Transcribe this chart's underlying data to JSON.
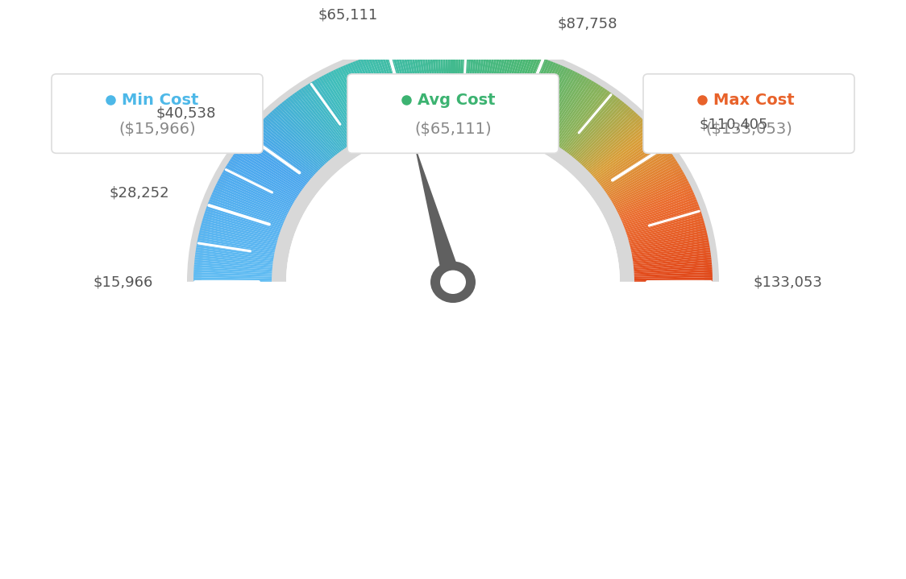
{
  "min_val": 15966,
  "max_val": 133053,
  "avg_val": 65111,
  "label_values": [
    15966,
    28252,
    40538,
    65111,
    87758,
    110405,
    133053
  ],
  "label_texts": [
    "$15,966",
    "$28,252",
    "$40,538",
    "$65,111",
    "$87,758",
    "$110,405",
    "$133,053"
  ],
  "color_stops": [
    [
      0.0,
      [
        0.38,
        0.74,
        0.95
      ]
    ],
    [
      0.2,
      [
        0.29,
        0.65,
        0.93
      ]
    ],
    [
      0.35,
      [
        0.25,
        0.75,
        0.72
      ]
    ],
    [
      0.5,
      [
        0.26,
        0.73,
        0.56
      ]
    ],
    [
      0.6,
      [
        0.3,
        0.72,
        0.45
      ]
    ],
    [
      0.7,
      [
        0.55,
        0.7,
        0.35
      ]
    ],
    [
      0.78,
      [
        0.85,
        0.62,
        0.22
      ]
    ],
    [
      0.88,
      [
        0.92,
        0.42,
        0.18
      ]
    ],
    [
      1.0,
      [
        0.88,
        0.28,
        0.1
      ]
    ]
  ],
  "legend": [
    {
      "label": "Min Cost",
      "value": "($15,966)",
      "color": "#4db8e8"
    },
    {
      "label": "Avg Cost",
      "value": "($65,111)",
      "color": "#3cb371"
    },
    {
      "label": "Max Cost",
      "value": "($133,053)",
      "color": "#e8622a"
    }
  ],
  "background_color": "#ffffff",
  "outer_ring_color": "#d8d8d8",
  "inner_ring_color": "#d8d8d8",
  "needle_color": "#606060",
  "needle_ring_color": "#606060"
}
